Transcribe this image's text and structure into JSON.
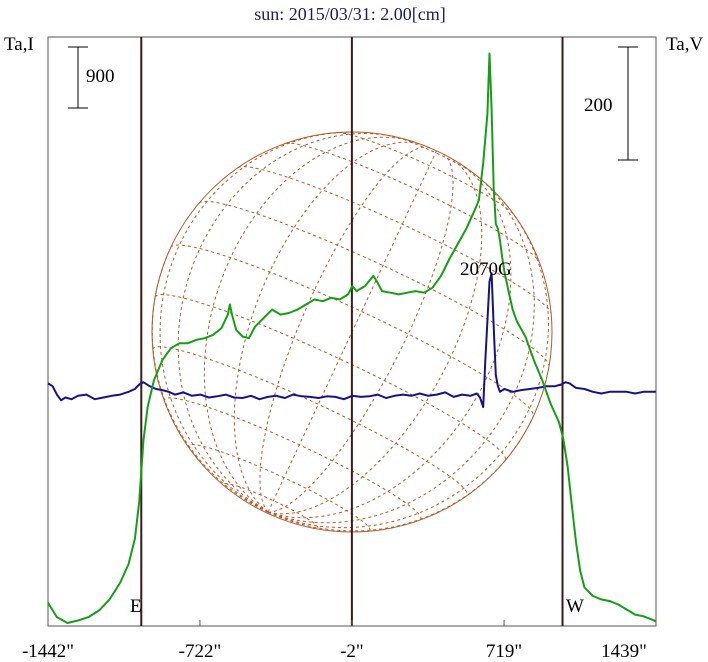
{
  "chart_data": {
    "type": "line",
    "title": "sun: 2015/03/31: 2.00[cm]",
    "left_axis_label": "Ta,I",
    "right_axis_label": "Ta,V",
    "left_scale_bar": "900",
    "right_scale_bar": "200",
    "x_tick_labels": [
      "-1442\"",
      "-722\"",
      "-2\"",
      "719\"",
      "1439\""
    ],
    "x_ticks": [
      -1442,
      -722,
      -2,
      719,
      1439
    ],
    "xlim": [
      -1442,
      1439
    ],
    "limb_labels": {
      "east": "E",
      "west": "W"
    },
    "limb_positions": [
      -1000,
      996
    ],
    "center_position": -2,
    "annotation": "2070G",
    "series": [
      {
        "name": "Ta,I",
        "color": "#159e15",
        "x": [
          -1442,
          -1400,
          -1350,
          -1300,
          -1250,
          -1200,
          -1150,
          -1100,
          -1060,
          -1030,
          -1010,
          -1000,
          -990,
          -970,
          -940,
          -900,
          -860,
          -820,
          -780,
          -740,
          -700,
          -660,
          -620,
          -590,
          -580,
          -570,
          -550,
          -520,
          -490,
          -460,
          -420,
          -380,
          -340,
          -300,
          -260,
          -220,
          -180,
          -140,
          -100,
          -60,
          -20,
          0,
          20,
          60,
          100,
          120,
          140,
          180,
          220,
          260,
          300,
          340,
          380,
          420,
          460,
          500,
          540,
          580,
          600,
          620,
          640,
          650,
          660,
          670,
          680,
          690,
          700,
          710,
          720,
          740,
          760,
          780,
          820,
          860,
          900,
          940,
          980,
          1000,
          1020,
          1040,
          1060,
          1080,
          1100,
          1140,
          1180,
          1220,
          1260,
          1300,
          1340,
          1380,
          1420,
          1439
        ],
        "values": [
          1.2,
          0.35,
          0.0,
          0.15,
          0.35,
          0.75,
          1.4,
          2.4,
          3.5,
          5.0,
          7.2,
          9.0,
          10.8,
          12.8,
          14.4,
          15.6,
          16.3,
          16.6,
          16.6,
          16.8,
          16.9,
          17.1,
          17.5,
          18.3,
          18.9,
          18.3,
          17.4,
          17.0,
          16.9,
          17.6,
          18.1,
          18.6,
          18.3,
          18.4,
          18.6,
          18.9,
          19.2,
          19.1,
          19.3,
          19.2,
          19.5,
          20.0,
          19.7,
          20.0,
          20.6,
          20.2,
          19.7,
          19.6,
          19.5,
          19.6,
          19.7,
          19.6,
          19.9,
          20.6,
          21.6,
          22.5,
          23.4,
          24.5,
          25.1,
          27.3,
          30.2,
          33.8,
          30.5,
          25.8,
          23.7,
          23.4,
          22.7,
          21.7,
          20.9,
          19.7,
          18.6,
          17.9,
          17.0,
          15.6,
          14.4,
          13.0,
          11.9,
          10.9,
          9.3,
          7.0,
          4.8,
          3.1,
          2.1,
          1.6,
          1.4,
          1.3,
          1.1,
          0.8,
          0.5,
          0.4,
          0.2,
          0.1
        ]
      },
      {
        "name": "Ta,V",
        "color": "#141486",
        "x": [
          -1442,
          -1420,
          -1400,
          -1380,
          -1360,
          -1330,
          -1300,
          -1260,
          -1220,
          -1180,
          -1140,
          -1100,
          -1060,
          -1030,
          -1010,
          -990,
          -960,
          -930,
          -900,
          -870,
          -840,
          -800,
          -760,
          -720,
          -680,
          -640,
          -600,
          -560,
          -520,
          -480,
          -440,
          -400,
          -360,
          -320,
          -280,
          -240,
          -200,
          -160,
          -120,
          -80,
          -40,
          0,
          40,
          80,
          120,
          160,
          200,
          240,
          280,
          320,
          360,
          400,
          440,
          480,
          520,
          560,
          590,
          605,
          620,
          630,
          640,
          650,
          660,
          670,
          680,
          690,
          700,
          720,
          760,
          800,
          840,
          880,
          920,
          960,
          990,
          1010,
          1030,
          1060,
          1100,
          1140,
          1180,
          1220,
          1260,
          1300,
          1340,
          1380,
          1420,
          1439
        ],
        "values": [
          0.1,
          0.05,
          -0.1,
          -0.2,
          -0.15,
          -0.18,
          -0.12,
          -0.1,
          -0.18,
          -0.15,
          -0.12,
          -0.1,
          -0.05,
          0.0,
          0.08,
          0.12,
          0.05,
          0.0,
          -0.02,
          -0.05,
          -0.1,
          -0.06,
          -0.12,
          -0.1,
          -0.15,
          -0.13,
          -0.1,
          -0.15,
          -0.16,
          -0.12,
          -0.18,
          -0.14,
          -0.12,
          -0.16,
          -0.1,
          -0.13,
          -0.14,
          -0.16,
          -0.13,
          -0.14,
          -0.18,
          -0.12,
          -0.14,
          -0.13,
          -0.1,
          -0.16,
          -0.12,
          -0.1,
          -0.12,
          -0.08,
          -0.12,
          -0.1,
          -0.06,
          -0.14,
          -0.1,
          -0.12,
          -0.08,
          -0.15,
          -0.32,
          0.5,
          1.2,
          1.9,
          2.05,
          1.1,
          0.25,
          0.05,
          -0.05,
          0.0,
          -0.05,
          -0.02,
          0.0,
          0.02,
          0.05,
          0.05,
          0.08,
          0.12,
          0.1,
          0.02,
          0.0,
          -0.05,
          -0.08,
          -0.05,
          -0.05,
          -0.05,
          -0.08,
          -0.05,
          -0.05,
          -0.05
        ]
      }
    ],
    "disk_grid": "heliographic latitude/longitude grid",
    "colors": {
      "disk": "#b25a2a",
      "ta_i": "#159e15",
      "ta_v": "#141486",
      "frame": "#555555",
      "markers": "#3a1a1a",
      "title": "#1a1a6e"
    }
  }
}
